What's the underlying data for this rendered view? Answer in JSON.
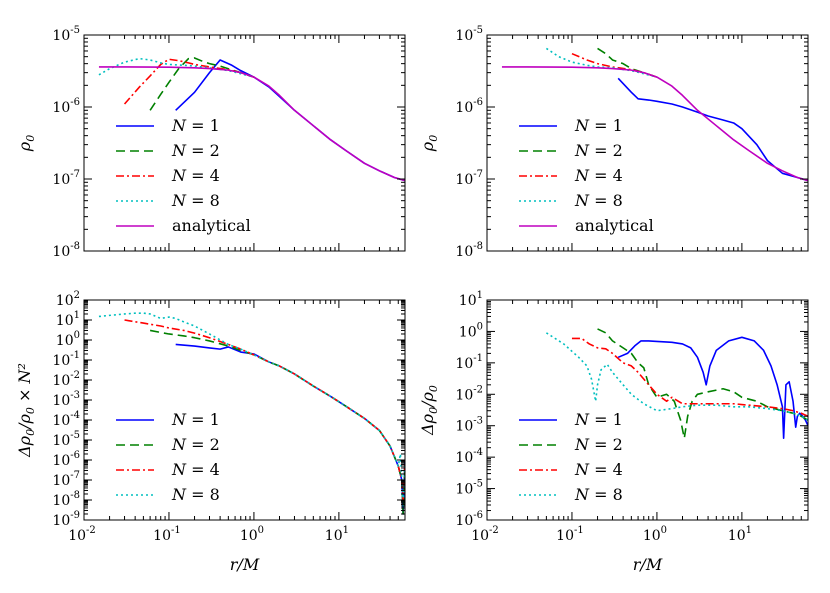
{
  "chart_data": [
    {
      "type": "line",
      "panel": "top-left",
      "xlabel": "",
      "ylabel": "ρ0",
      "xscale": "log",
      "yscale": "log",
      "xlim": [
        0.01,
        60
      ],
      "ylim": [
        1e-08,
        1e-05
      ],
      "x_tick_exponents": [
        -2,
        -1,
        0,
        1
      ],
      "y_tick_exponents": [
        -8,
        -7,
        -6,
        -5
      ],
      "x_ticklabels_visible": false,
      "legend_position": "lower-left",
      "series": [
        {
          "name": "N = 1",
          "color": "#0000ff",
          "style": "solid",
          "x": [
            0.12,
            0.2,
            0.3,
            0.4,
            0.55,
            0.7,
            1.0,
            1.5,
            2.0,
            3.0,
            5.0,
            8.0,
            12.0,
            20.0,
            30.0,
            45.0,
            60.0
          ],
          "y": [
            9e-07,
            1.6e-06,
            3e-06,
            4.5e-06,
            3.8e-06,
            3.2e-06,
            2.6e-06,
            1.9e-06,
            1.4e-06,
            9e-07,
            5.5e-07,
            3.5e-07,
            2.5e-07,
            1.65e-07,
            1.3e-07,
            1.05e-07,
            9.5e-08
          ]
        },
        {
          "name": "N = 2",
          "color": "#008000",
          "style": "dashed",
          "x": [
            0.06,
            0.08,
            0.1,
            0.13,
            0.17,
            0.2,
            0.25,
            0.3,
            0.4,
            0.5,
            0.7,
            1.0
          ],
          "y": [
            9e-07,
            1.5e-06,
            2.2e-06,
            3.4e-06,
            4.7e-06,
            4.8e-06,
            4.3e-06,
            4e-06,
            3.7e-06,
            3.4e-06,
            3e-06,
            2.6e-06
          ]
        },
        {
          "name": "N = 4",
          "color": "#ff0000",
          "style": "dashdot",
          "x": [
            0.03,
            0.045,
            0.06,
            0.08,
            0.1,
            0.13,
            0.17,
            0.2,
            0.3,
            0.5,
            0.7,
            1.0
          ],
          "y": [
            1.1e-06,
            1.9e-06,
            2.7e-06,
            3.9e-06,
            4.6e-06,
            4.4e-06,
            4.1e-06,
            3.9e-06,
            3.6e-06,
            3.3e-06,
            3e-06,
            2.6e-06
          ]
        },
        {
          "name": "N = 8",
          "color": "#00bfbf",
          "style": "dotted",
          "x": [
            0.015,
            0.02,
            0.03,
            0.045,
            0.06,
            0.08,
            0.1,
            0.15,
            0.2,
            0.3,
            0.5,
            0.7,
            1.0
          ],
          "y": [
            2.8e-06,
            3.4e-06,
            4.2e-06,
            4.7e-06,
            4.5e-06,
            4.1e-06,
            3.9e-06,
            3.8e-06,
            3.7e-06,
            3.5e-06,
            3.2e-06,
            2.9e-06,
            2.6e-06
          ]
        },
        {
          "name": "analytical",
          "color": "#bf00bf",
          "style": "solid",
          "x": [
            0.015,
            0.03,
            0.06,
            0.1,
            0.2,
            0.3,
            0.5,
            0.7,
            1.0,
            1.5,
            2.0,
            3.0,
            5.0,
            8.0,
            12.0,
            20.0,
            30.0,
            45.0,
            60.0
          ],
          "y": [
            3.6e-06,
            3.6e-06,
            3.59e-06,
            3.57e-06,
            3.5e-06,
            3.42e-06,
            3.25e-06,
            3e-06,
            2.6e-06,
            1.95e-06,
            1.45e-06,
            9e-07,
            5.5e-07,
            3.5e-07,
            2.5e-07,
            1.65e-07,
            1.3e-07,
            1.05e-07,
            9.5e-08
          ]
        }
      ]
    },
    {
      "type": "line",
      "panel": "top-right",
      "xlabel": "",
      "ylabel": "ρ0",
      "xscale": "log",
      "yscale": "log",
      "xlim": [
        0.01,
        60
      ],
      "ylim": [
        1e-08,
        1e-05
      ],
      "x_tick_exponents": [
        -2,
        -1,
        0,
        1
      ],
      "y_tick_exponents": [
        -8,
        -7,
        -6,
        -5
      ],
      "x_ticklabels_visible": false,
      "legend_position": "lower-left",
      "series": [
        {
          "name": "N = 1",
          "color": "#0000ff",
          "style": "solid",
          "x": [
            0.35,
            0.5,
            0.6,
            0.8,
            1.0,
            1.5,
            2.0,
            3.0,
            4.0,
            6.0,
            8.0,
            10.0,
            15.0,
            20.0,
            30.0,
            45.0,
            60.0
          ],
          "y": [
            2.5e-06,
            1.6e-06,
            1.3e-06,
            1.25e-06,
            1.2e-06,
            1.1e-06,
            1e-06,
            8.5e-07,
            7.5e-07,
            6.6e-07,
            6e-07,
            5e-07,
            3e-07,
            1.8e-07,
            1.2e-07,
            1.05e-07,
            9.5e-08
          ]
        },
        {
          "name": "N = 2",
          "color": "#008000",
          "style": "dashed",
          "x": [
            0.2,
            0.25,
            0.3,
            0.4,
            0.5,
            0.7,
            1.0
          ],
          "y": [
            6.5e-06,
            5.5e-06,
            4.5e-06,
            4e-06,
            3.4e-06,
            3e-06,
            2.6e-06
          ]
        },
        {
          "name": "N = 4",
          "color": "#ff0000",
          "style": "dashdot",
          "x": [
            0.1,
            0.15,
            0.2,
            0.3,
            0.5,
            0.7,
            1.0
          ],
          "y": [
            5.5e-06,
            4.5e-06,
            4e-06,
            3.6e-06,
            3.3e-06,
            3e-06,
            2.6e-06
          ]
        },
        {
          "name": "N = 8",
          "color": "#00bfbf",
          "style": "dotted",
          "x": [
            0.05,
            0.07,
            0.1,
            0.15,
            0.2,
            0.3,
            0.5,
            0.7,
            1.0
          ],
          "y": [
            6.5e-06,
            5e-06,
            4.2e-06,
            3.8e-06,
            3.6e-06,
            3.5e-06,
            3.2e-06,
            2.9e-06,
            2.6e-06
          ]
        },
        {
          "name": "analytical",
          "color": "#bf00bf",
          "style": "solid",
          "x": [
            0.015,
            0.03,
            0.06,
            0.1,
            0.2,
            0.3,
            0.5,
            0.7,
            1.0,
            1.5,
            2.0,
            3.0,
            5.0,
            8.0,
            12.0,
            20.0,
            30.0,
            45.0,
            60.0
          ],
          "y": [
            3.6e-06,
            3.6e-06,
            3.59e-06,
            3.57e-06,
            3.5e-06,
            3.42e-06,
            3.25e-06,
            3e-06,
            2.6e-06,
            1.95e-06,
            1.45e-06,
            9e-07,
            5.5e-07,
            3.5e-07,
            2.5e-07,
            1.65e-07,
            1.3e-07,
            1.05e-07,
            9.5e-08
          ]
        }
      ]
    },
    {
      "type": "line",
      "panel": "bottom-left",
      "xlabel": "r/M",
      "ylabel": "Δρ0/ρ0 × N²",
      "xscale": "log",
      "yscale": "log",
      "xlim": [
        0.01,
        60
      ],
      "ylim": [
        1e-09,
        100
      ],
      "x_tick_exponents": [
        -2,
        -1,
        0,
        1
      ],
      "y_tick_exponents": [
        -9,
        -8,
        -7,
        -6,
        -5,
        -4,
        -3,
        -2,
        -1,
        0,
        1,
        2
      ],
      "x_ticklabels_visible": true,
      "legend_position": "lower-left",
      "series": [
        {
          "name": "N = 1",
          "color": "#0000ff",
          "style": "solid",
          "x": [
            0.12,
            0.2,
            0.3,
            0.4,
            0.5,
            0.7,
            1.0,
            1.5,
            2.0,
            3.0,
            5.0,
            8.0,
            12.0,
            20.0,
            30.0,
            40.0,
            50.0,
            55.0,
            57.0,
            60.0
          ],
          "y": [
            0.6,
            0.5,
            0.4,
            0.35,
            0.45,
            0.25,
            0.2,
            0.08,
            0.05,
            0.02,
            0.005,
            0.0015,
            0.0005,
            0.00012,
            3e-05,
            5e-06,
            5e-07,
            1e-07,
            2e-09,
            1e-06
          ]
        },
        {
          "name": "N = 2",
          "color": "#008000",
          "style": "dashed",
          "x": [
            0.06,
            0.1,
            0.15,
            0.2,
            0.3,
            0.5,
            0.7,
            1.0,
            1.5,
            2.0,
            3.0,
            5.0,
            8.0,
            12.0,
            20.0,
            30.0,
            40.0,
            50.0,
            55.0,
            57.0,
            60.0
          ],
          "y": [
            3.0,
            2.0,
            1.6,
            1.3,
            0.9,
            0.5,
            0.3,
            0.18,
            0.08,
            0.05,
            0.02,
            0.005,
            0.0015,
            0.0005,
            0.00012,
            3e-05,
            5e-06,
            5e-07,
            1e-07,
            2e-09,
            5e-07
          ]
        },
        {
          "name": "N = 4",
          "color": "#ff0000",
          "style": "dashdot",
          "x": [
            0.03,
            0.05,
            0.08,
            0.1,
            0.15,
            0.2,
            0.3,
            0.5,
            0.7,
            1.0,
            1.5,
            2.0,
            3.0,
            5.0,
            8.0,
            12.0,
            20.0,
            30.0,
            40.0,
            50.0,
            55.0,
            57.0,
            60.0
          ],
          "y": [
            10.0,
            7.0,
            5.0,
            4.0,
            3.0,
            2.2,
            1.3,
            0.6,
            0.35,
            0.18,
            0.08,
            0.05,
            0.02,
            0.005,
            0.0015,
            0.0005,
            0.00012,
            3e-05,
            5e-06,
            5e-07,
            1e-07,
            1e-08,
            1e-06
          ]
        },
        {
          "name": "N = 8",
          "color": "#00bfbf",
          "style": "dotted",
          "x": [
            0.015,
            0.02,
            0.03,
            0.04,
            0.05,
            0.06,
            0.08,
            0.1,
            0.12,
            0.15,
            0.2,
            0.3,
            0.5,
            0.7,
            1.0,
            1.5,
            2.0,
            3.0,
            5.0,
            8.0,
            12.0,
            20.0,
            30.0,
            40.0,
            50.0,
            53.0,
            55.0,
            57.0,
            60.0
          ],
          "y": [
            15.0,
            17.0,
            20.0,
            22.0,
            22.0,
            20.0,
            12.0,
            14.0,
            12.0,
            8.0,
            5.0,
            2.0,
            0.6,
            0.35,
            0.18,
            0.08,
            0.05,
            0.02,
            0.005,
            0.0015,
            0.0005,
            0.00012,
            3e-05,
            5e-06,
            5e-07,
            2e-06,
            1e-07,
            5e-09,
            1e-06
          ]
        }
      ]
    },
    {
      "type": "line",
      "panel": "bottom-right",
      "xlabel": "r/M",
      "ylabel": "Δρ0/ρ0",
      "xscale": "log",
      "yscale": "log",
      "xlim": [
        0.01,
        60
      ],
      "ylim": [
        1e-06,
        10
      ],
      "x_tick_exponents": [
        -2,
        -1,
        0,
        1
      ],
      "y_tick_exponents": [
        -6,
        -5,
        -4,
        -3,
        -2,
        -1,
        0,
        1
      ],
      "x_ticklabels_visible": true,
      "legend_position": "lower-left",
      "series": [
        {
          "name": "N = 1",
          "color": "#0000ff",
          "style": "solid",
          "x": [
            0.35,
            0.45,
            0.55,
            0.65,
            0.8,
            1.0,
            1.5,
            2.0,
            2.5,
            3.0,
            3.5,
            3.8,
            4.2,
            5.0,
            7.0,
            10.0,
            14.0,
            18.0,
            22.0,
            26.0,
            30.0,
            31.0,
            33.0,
            36.0,
            40.0,
            43.0,
            45.0,
            48.0,
            52.0,
            56.0,
            60.0
          ],
          "y": [
            0.15,
            0.2,
            0.35,
            0.5,
            0.5,
            0.48,
            0.45,
            0.4,
            0.3,
            0.15,
            0.05,
            0.02,
            0.08,
            0.25,
            0.5,
            0.65,
            0.5,
            0.25,
            0.08,
            0.02,
            0.004,
            0.0004,
            0.02,
            0.025,
            0.006,
            0.0009,
            0.002,
            0.0025,
            0.002,
            0.0015,
            0.001
          ]
        },
        {
          "name": "N = 2",
          "color": "#008000",
          "style": "dashed",
          "x": [
            0.2,
            0.25,
            0.3,
            0.4,
            0.5,
            0.6,
            0.7,
            0.8,
            1.0,
            1.3,
            1.6,
            1.9,
            2.1,
            2.3,
            2.6,
            3.0,
            4.0,
            6.0,
            8.0,
            10.0,
            15.0,
            20.0,
            30.0,
            40.0,
            50.0,
            60.0
          ],
          "y": [
            1.2,
            0.9,
            0.5,
            0.3,
            0.2,
            0.1,
            0.07,
            0.02,
            0.008,
            0.01,
            0.006,
            0.0015,
            0.0004,
            0.002,
            0.006,
            0.01,
            0.012,
            0.015,
            0.012,
            0.008,
            0.006,
            0.004,
            0.003,
            0.0025,
            0.002,
            0.0015
          ]
        },
        {
          "name": "N = 4",
          "color": "#ff0000",
          "style": "dashdot",
          "x": [
            0.1,
            0.13,
            0.16,
            0.2,
            0.25,
            0.3,
            0.4,
            0.5,
            0.6,
            0.8,
            1.0,
            1.3,
            1.5,
            2.0,
            3.0,
            5.0,
            8.0,
            12.0,
            20.0,
            30.0,
            40.0,
            50.0,
            60.0
          ],
          "y": [
            0.6,
            0.6,
            0.4,
            0.3,
            0.28,
            0.2,
            0.1,
            0.08,
            0.05,
            0.02,
            0.01,
            0.006,
            0.008,
            0.005,
            0.005,
            0.005,
            0.005,
            0.0045,
            0.004,
            0.0035,
            0.003,
            0.0025,
            0.002
          ]
        },
        {
          "name": "N = 8",
          "color": "#00bfbf",
          "style": "dotted",
          "x": [
            0.05,
            0.08,
            0.12,
            0.15,
            0.17,
            0.19,
            0.2,
            0.22,
            0.26,
            0.3,
            0.4,
            0.5,
            0.7,
            1.0,
            1.5,
            2.0,
            3.0,
            5.0,
            8.0,
            12.0,
            20.0,
            30.0,
            40.0,
            50.0,
            60.0
          ],
          "y": [
            0.9,
            0.4,
            0.15,
            0.08,
            0.03,
            0.006,
            0.02,
            0.06,
            0.09,
            0.05,
            0.02,
            0.01,
            0.005,
            0.003,
            0.0035,
            0.004,
            0.0045,
            0.0045,
            0.004,
            0.004,
            0.0035,
            0.003,
            0.0025,
            0.002,
            0.0015
          ]
        }
      ]
    }
  ]
}
